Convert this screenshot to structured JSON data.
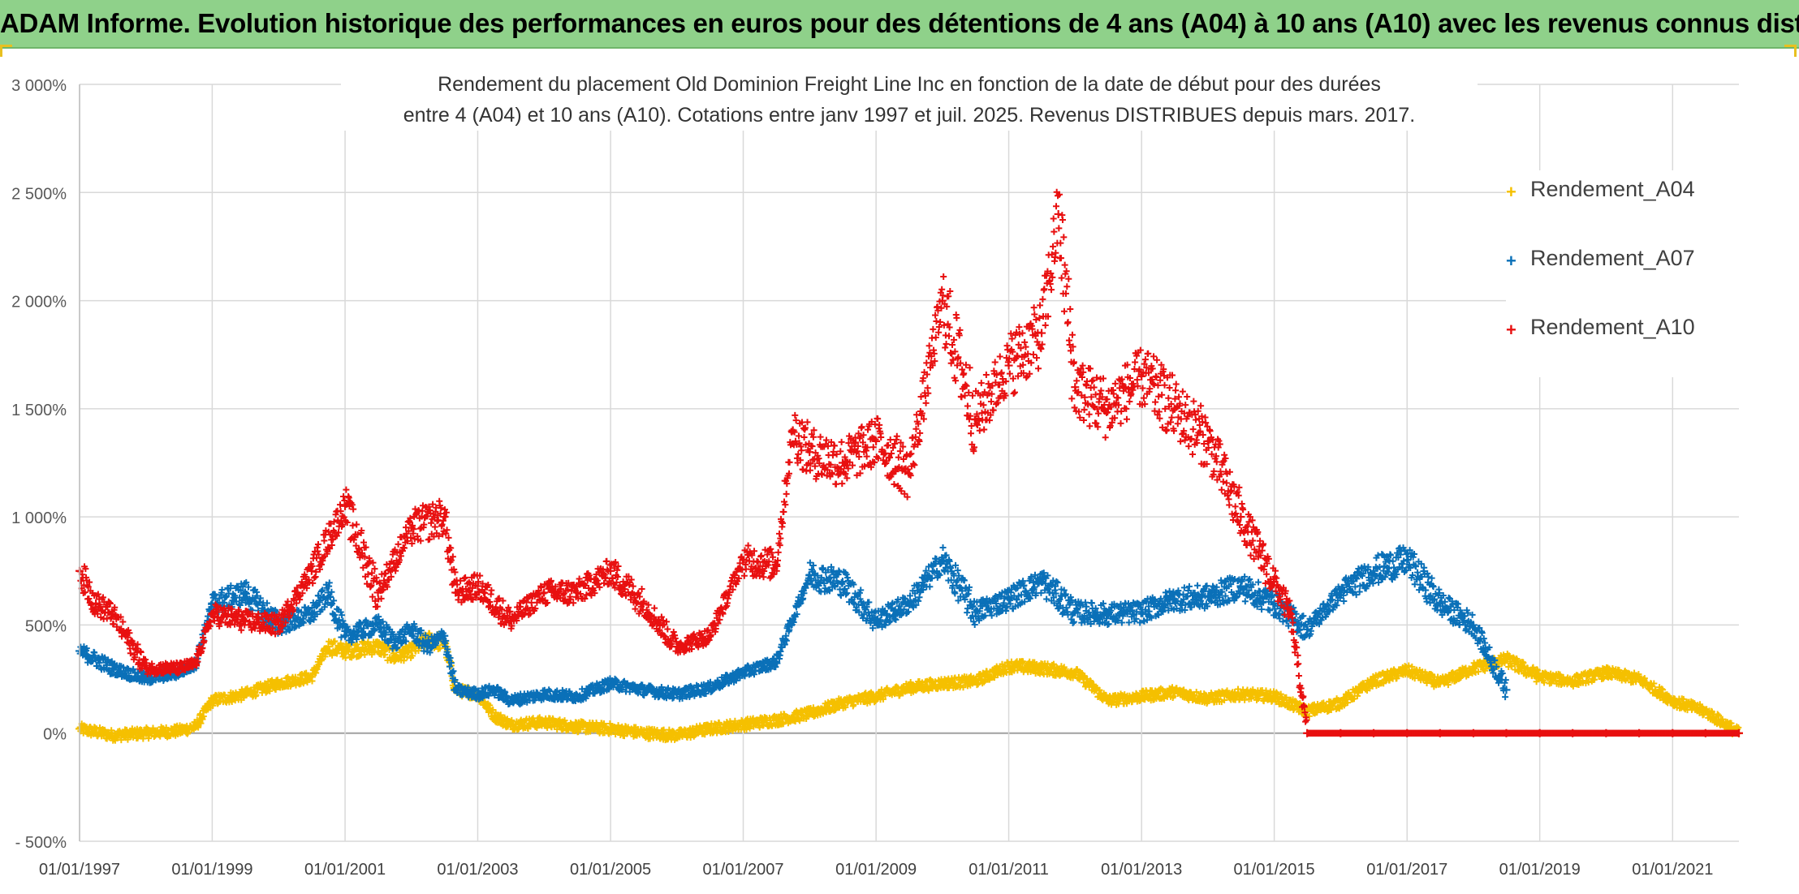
{
  "header": {
    "title": "ADAM Informe. Evolution historique des performances en euros pour des détentions de 4 ans (A04) à 10 ans (A10) avec les revenus connus distribués"
  },
  "chart_data": {
    "type": "scatter",
    "title_lines": [
      "Rendement du placement Old Dominion Freight Line Inc en fonction de la date de début pour des durées",
      "entre 4 (A04) et 10 ans (A10). Cotations entre janv 1997 et juil. 2025. Revenus DISTRIBUES depuis mars. 2017."
    ],
    "xlabel": "",
    "ylabel": "",
    "x_range": [
      "1997-01-01",
      "2022-01-01"
    ],
    "ylim": [
      -500,
      3000
    ],
    "y_ticks": [
      -500,
      0,
      500,
      1000,
      1500,
      2000,
      2500,
      3000
    ],
    "y_tick_labels": [
      "- 500%",
      "0%",
      "500%",
      "1 000%",
      "1 500%",
      "2 000%",
      "2 500%",
      "3 000%"
    ],
    "x_ticks": [
      "1997-01-01",
      "1999-01-01",
      "2001-01-01",
      "2003-01-01",
      "2005-01-01",
      "2007-01-01",
      "2009-01-01",
      "2011-01-01",
      "2013-01-01",
      "2015-01-01",
      "2017-01-01",
      "2019-01-01",
      "2021-01-01"
    ],
    "x_tick_labels": [
      "01/01/1997",
      "01/01/1999",
      "01/01/2001",
      "01/01/2003",
      "01/01/2005",
      "01/01/2007",
      "01/01/2009",
      "01/01/2011",
      "01/01/2013",
      "01/01/2015",
      "01/01/2017",
      "01/01/2019",
      "01/01/2021"
    ],
    "grid": true,
    "legend_position": "right",
    "marker": "+",
    "series": [
      {
        "name": "Rendement_A04",
        "color": "#f5c000",
        "x": [
          "1997-01-01",
          "1997-07-01",
          "1998-01-01",
          "1998-07-01",
          "1998-10-01",
          "1999-01-01",
          "1999-07-01",
          "2000-01-01",
          "2000-07-01",
          "2000-10-01",
          "2001-01-01",
          "2001-07-01",
          "2001-10-01",
          "2002-01-01",
          "2002-04-01",
          "2002-07-01",
          "2002-09-01",
          "2003-01-01",
          "2003-04-01",
          "2003-07-01",
          "2004-01-01",
          "2004-07-01",
          "2005-01-01",
          "2005-07-01",
          "2006-01-01",
          "2006-07-01",
          "2007-01-01",
          "2007-07-01",
          "2008-01-01",
          "2008-07-01",
          "2009-01-01",
          "2009-07-01",
          "2010-01-01",
          "2010-07-01",
          "2011-01-01",
          "2011-07-01",
          "2012-01-01",
          "2012-07-01",
          "2013-01-01",
          "2013-07-01",
          "2014-01-01",
          "2014-07-01",
          "2015-01-01",
          "2015-07-01",
          "2016-01-01",
          "2016-07-01",
          "2017-01-01",
          "2017-07-01",
          "2018-01-01",
          "2018-07-01",
          "2019-01-01",
          "2019-07-01",
          "2020-01-01",
          "2020-07-01",
          "2021-01-01",
          "2021-07-01",
          "2022-01-01"
        ],
        "y": [
          20,
          -10,
          0,
          10,
          30,
          150,
          180,
          230,
          260,
          400,
          380,
          400,
          350,
          380,
          430,
          420,
          200,
          180,
          80,
          40,
          50,
          30,
          20,
          0,
          -10,
          20,
          40,
          60,
          90,
          140,
          170,
          210,
          230,
          240,
          310,
          300,
          280,
          150,
          170,
          190,
          160,
          180,
          170,
          100,
          140,
          240,
          290,
          230,
          300,
          340,
          260,
          240,
          280,
          250,
          150,
          100,
          0
        ]
      },
      {
        "name": "Rendement_A07",
        "color": "#0a70b8",
        "x": [
          "1997-01-01",
          "1997-07-01",
          "1998-01-01",
          "1998-07-01",
          "1998-10-01",
          "1999-01-01",
          "1999-07-01",
          "2000-01-01",
          "2000-07-01",
          "2000-10-01",
          "2001-01-01",
          "2001-07-01",
          "2001-10-01",
          "2002-01-01",
          "2002-04-01",
          "2002-07-01",
          "2002-09-01",
          "2003-01-01",
          "2003-04-01",
          "2003-07-01",
          "2004-01-01",
          "2004-07-01",
          "2005-01-01",
          "2005-07-01",
          "2006-01-01",
          "2006-07-01",
          "2007-01-01",
          "2007-07-01",
          "2008-01-01",
          "2008-07-01",
          "2009-01-01",
          "2009-07-01",
          "2010-01-01",
          "2010-07-01",
          "2011-01-01",
          "2011-07-01",
          "2012-01-01",
          "2012-07-01",
          "2013-01-01",
          "2013-07-01",
          "2014-01-01",
          "2014-07-01",
          "2015-01-01",
          "2015-07-01",
          "2016-01-01",
          "2016-07-01",
          "2017-01-01",
          "2017-07-01",
          "2018-01-01",
          "2018-07-01"
        ],
        "y": [
          380,
          300,
          250,
          280,
          320,
          600,
          650,
          500,
          550,
          650,
          450,
          500,
          420,
          480,
          400,
          450,
          200,
          180,
          200,
          150,
          180,
          170,
          230,
          200,
          180,
          210,
          280,
          330,
          730,
          700,
          520,
          600,
          800,
          560,
          620,
          700,
          560,
          550,
          560,
          620,
          630,
          680,
          600,
          480,
          650,
          750,
          800,
          600,
          500,
          200
        ]
      },
      {
        "name": "Rendement_A10",
        "color": "#e81010",
        "x": [
          "1997-01-01",
          "1997-04-01",
          "1997-07-01",
          "1998-01-01",
          "1998-07-01",
          "1998-10-01",
          "1999-01-01",
          "1999-07-01",
          "2000-01-01",
          "2000-07-01",
          "2001-01-01",
          "2001-07-01",
          "2002-01-01",
          "2002-07-01",
          "2002-09-01",
          "2003-01-01",
          "2003-07-01",
          "2004-01-01",
          "2004-07-01",
          "2005-01-01",
          "2005-07-01",
          "2006-01-01",
          "2006-07-01",
          "2007-01-01",
          "2007-07-01",
          "2007-10-01",
          "2008-01-01",
          "2008-07-01",
          "2009-01-01",
          "2009-07-01",
          "2010-01-01",
          "2010-07-01",
          "2011-01-01",
          "2011-07-01",
          "2011-10-01",
          "2012-01-01",
          "2012-07-01",
          "2013-01-01",
          "2013-07-01",
          "2014-01-01",
          "2014-07-01",
          "2015-01-01",
          "2015-04-01",
          "2015-07-01",
          "2016-01-01",
          "2016-07-01",
          "2017-01-01",
          "2017-07-01",
          "2018-01-01",
          "2018-07-01",
          "2019-01-01",
          "2019-07-01",
          "2020-01-01",
          "2020-07-01",
          "2021-01-01",
          "2021-07-01",
          "2022-01-01"
        ],
        "y": [
          750,
          600,
          550,
          300,
          300,
          320,
          550,
          520,
          500,
          750,
          1050,
          650,
          950,
          1000,
          650,
          680,
          520,
          650,
          650,
          750,
          600,
          400,
          450,
          800,
          780,
          1400,
          1300,
          1250,
          1350,
          1200,
          2000,
          1450,
          1700,
          1850,
          2400,
          1600,
          1500,
          1650,
          1500,
          1350,
          1000,
          700,
          550,
          0,
          0,
          0,
          0,
          0,
          0,
          0,
          0,
          0,
          0,
          0,
          0,
          0,
          0
        ]
      }
    ]
  }
}
